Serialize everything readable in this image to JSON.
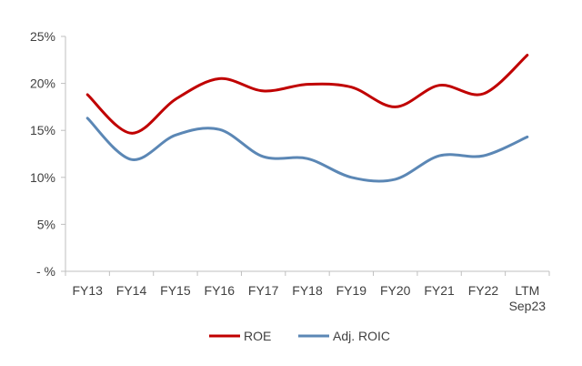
{
  "chart_data": {
    "type": "line",
    "categories": [
      "FY13",
      "FY14",
      "FY15",
      "FY16",
      "FY17",
      "FY18",
      "FY19",
      "FY20",
      "FY21",
      "FY22",
      "LTM Sep23"
    ],
    "category_lines": [
      [
        "FY13"
      ],
      [
        "FY14"
      ],
      [
        "FY15"
      ],
      [
        "FY16"
      ],
      [
        "FY17"
      ],
      [
        "FY18"
      ],
      [
        "FY19"
      ],
      [
        "FY20"
      ],
      [
        "FY21"
      ],
      [
        "FY22"
      ],
      [
        "LTM",
        "Sep23"
      ]
    ],
    "series": [
      {
        "name": "ROE",
        "color": "#C00000",
        "values": [
          18.8,
          14.7,
          18.3,
          20.5,
          19.2,
          19.9,
          19.6,
          17.5,
          19.8,
          18.9,
          23.0
        ]
      },
      {
        "name": "Adj. ROIC",
        "color": "#5B87B5",
        "values": [
          16.3,
          11.9,
          14.5,
          15.1,
          12.2,
          12.0,
          10.0,
          9.8,
          12.3,
          12.3,
          14.3
        ]
      }
    ],
    "yticks": [
      0,
      5,
      10,
      15,
      20,
      25
    ],
    "ytick_labels": [
      "- %",
      "5%",
      "10%",
      "15%",
      "20%",
      "25%"
    ],
    "ylim": [
      0,
      25
    ],
    "grid": false,
    "legend_position": "bottom"
  }
}
